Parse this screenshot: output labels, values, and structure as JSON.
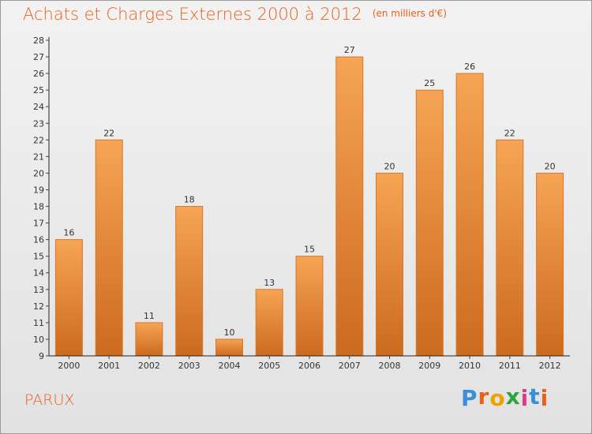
{
  "title": "Achats et Charges Externes 2000 à 2012",
  "subtitle": "(en milliers d'€)",
  "place": "PARUX",
  "logo": {
    "text": "Proxiti",
    "letters": [
      "P",
      "r",
      "o",
      "x",
      "i",
      "t",
      "i"
    ],
    "colors": [
      "#3a8fd8",
      "#e8601a",
      "#f0a000",
      "#2aa640",
      "#d93c8a",
      "#3a8fd8",
      "#e8601a"
    ]
  },
  "colors": {
    "bar_top": "#f6a455",
    "bar_bottom": "#cc6a1e",
    "bar_edge": "#d9772a",
    "title": "#e8601a"
  },
  "chart_data": {
    "type": "bar",
    "categories": [
      "2000",
      "2001",
      "2002",
      "2003",
      "2004",
      "2005",
      "2006",
      "2007",
      "2008",
      "2009",
      "2010",
      "2011",
      "2012"
    ],
    "values": [
      16,
      22,
      11,
      18,
      10,
      13,
      15,
      27,
      20,
      25,
      26,
      22,
      20
    ],
    "ylim": [
      9,
      28
    ],
    "yticks": [
      9,
      10,
      11,
      12,
      13,
      14,
      15,
      16,
      17,
      18,
      19,
      20,
      21,
      22,
      23,
      24,
      25,
      26,
      27,
      28
    ],
    "xlabel": "",
    "ylabel": "",
    "grid": false,
    "data_labels": true
  }
}
